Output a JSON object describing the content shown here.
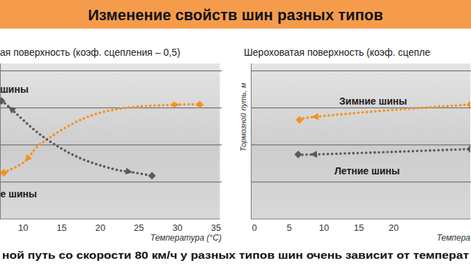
{
  "title": "Изменение свойств шин разных типов",
  "caption": "ной путь со скорости 80 км/ч у разных типов шин очень зависит от температ",
  "chart_data": [
    {
      "type": "line",
      "title": "ая поверхность (коэф. сцепления – 0,5)",
      "x_label": "Температура (°C)",
      "xlim": [
        7,
        35.5
      ],
      "xticks": [
        10,
        15,
        20,
        25,
        30,
        35
      ],
      "ylim": [
        0,
        4.2
      ],
      "yticks": [
        1,
        2,
        3,
        4
      ],
      "grid": true,
      "tick_labels": "x",
      "series": [
        {
          "name": "е шины",
          "color": "#f7901e",
          "marker": "diamond",
          "line_style": "dotted",
          "x": [
            7.5,
            10.2,
            12.4,
            17.9,
            23.3,
            30.3,
            32.9
          ],
          "values": [
            1.25,
            1.55,
            2.05,
            2.72,
            3.0,
            3.09,
            3.09
          ]
        },
        {
          "name": "шины",
          "color": "#5a5a5a",
          "marker": "diamond",
          "line_style": "dotted",
          "x": [
            7.2,
            8.1,
            12.4,
            17.0,
            21.5,
            24.2,
            26.7
          ],
          "values": [
            3.19,
            3.04,
            2.25,
            1.68,
            1.36,
            1.26,
            1.17
          ]
        }
      ]
    },
    {
      "type": "line",
      "title": "Шероховатая поверхность (коэф. сцепле",
      "x_label": "Темпера",
      "y_label": "Тормозной путь, м",
      "xlim": [
        -0.5,
        31
      ],
      "xticks": [
        0,
        5,
        10,
        15,
        20
      ],
      "ylim": [
        0,
        4.2
      ],
      "yticks": [
        1,
        2,
        3,
        4
      ],
      "grid": true,
      "tick_labels": "x",
      "series": [
        {
          "name": "Зимние шины",
          "color": "#f7901e",
          "marker": "diamond",
          "line_style": "dotted",
          "x": [
            6.5,
            8.2,
            19.5,
            31
          ],
          "values": [
            2.68,
            2.75,
            2.94,
            3.09
          ]
        },
        {
          "name": "Летние шины",
          "color": "#5a5a5a",
          "marker": "diamond",
          "line_style": "dotted",
          "x": [
            6.3,
            8.0,
            19.5,
            31
          ],
          "values": [
            1.74,
            1.74,
            1.81,
            1.89
          ]
        }
      ]
    }
  ]
}
